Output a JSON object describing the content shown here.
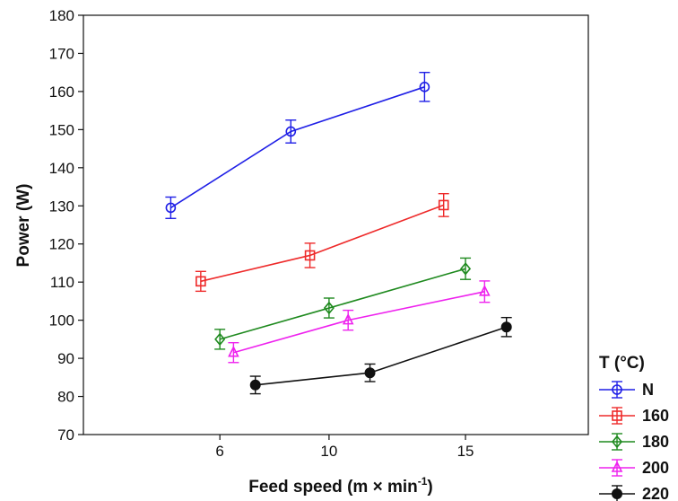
{
  "chart_data": {
    "type": "line",
    "xlabel": "Feed speed (m × min",
    "xlabel_sup": "-1",
    "xlabel_close": ")",
    "ylabel": "Power (W)",
    "xlim": [
      1,
      19.5
    ],
    "ylim": [
      70,
      180
    ],
    "xticks": [
      6,
      10,
      15
    ],
    "yticks": [
      70,
      80,
      90,
      100,
      110,
      120,
      130,
      140,
      150,
      160,
      170,
      180
    ],
    "legend_title": "T (°C)",
    "legend_position": "bottom-right-outside",
    "grid": false,
    "series": [
      {
        "name": "N",
        "color": "#1f1fe6",
        "marker": "circle-open",
        "x": [
          4.2,
          8.6,
          13.5
        ],
        "y": [
          129.5,
          149.5,
          161.2
        ],
        "err": [
          2.8,
          3.0,
          3.8
        ]
      },
      {
        "name": "160",
        "color": "#ee2a2a",
        "marker": "square-open",
        "x": [
          5.3,
          9.3,
          14.2
        ],
        "y": [
          110.2,
          117.0,
          130.2
        ],
        "err": [
          2.6,
          3.2,
          3.0
        ]
      },
      {
        "name": "180",
        "color": "#1f8a1f",
        "marker": "diamond-open",
        "x": [
          6.0,
          10.0,
          15.0
        ],
        "y": [
          95.0,
          103.2,
          113.5
        ],
        "err": [
          2.6,
          2.6,
          2.8
        ]
      },
      {
        "name": "200",
        "color": "#ee22ee",
        "marker": "triangle-open",
        "x": [
          6.5,
          10.7,
          15.7
        ],
        "y": [
          91.5,
          100.0,
          107.5
        ],
        "err": [
          2.6,
          2.6,
          2.8
        ]
      },
      {
        "name": "220",
        "color": "#111111",
        "marker": "circle-filled",
        "x": [
          7.3,
          11.5,
          16.5
        ],
        "y": [
          83.0,
          86.2,
          98.2
        ],
        "err": [
          2.3,
          2.3,
          2.5
        ]
      }
    ]
  }
}
